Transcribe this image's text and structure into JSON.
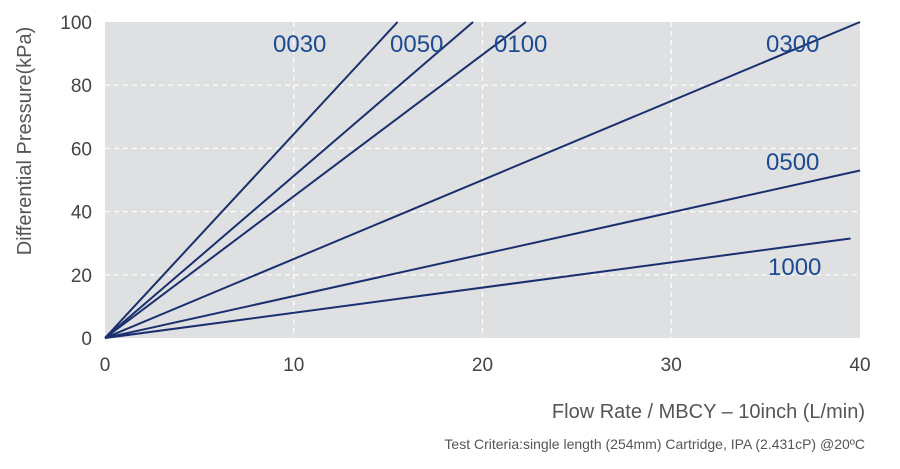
{
  "chart_data": {
    "type": "line",
    "title": "",
    "xlabel": "Flow Rate / MBCY – 10inch (L/min)",
    "ylabel": "Differential Pressure(kPa)",
    "xlim": [
      0,
      40
    ],
    "ylim": [
      0,
      100
    ],
    "xticks": [
      "0",
      "10",
      "20",
      "30",
      "40"
    ],
    "yticks": [
      "0",
      "20",
      "40",
      "60",
      "80",
      "100"
    ],
    "grid": true,
    "note": "Test Criteria:single length (254mm) Cartridge, IPA (2.431cP)  @20ºC",
    "colors": {
      "plot_bg": "#dfe0e2",
      "line": "#1a2f6e",
      "label": "#1b4b93",
      "grid": "#ffffff"
    },
    "series": [
      {
        "name": "0030",
        "x": [
          0,
          15.5
        ],
        "y": [
          0,
          100
        ]
      },
      {
        "name": "0050",
        "x": [
          0,
          19.5
        ],
        "y": [
          0,
          100
        ]
      },
      {
        "name": "0100",
        "x": [
          0,
          22.3
        ],
        "y": [
          0,
          100
        ]
      },
      {
        "name": "0300",
        "x": [
          0,
          40
        ],
        "y": [
          0,
          100
        ]
      },
      {
        "name": "0500",
        "x": [
          0,
          40
        ],
        "y": [
          0,
          53
        ]
      },
      {
        "name": "1000",
        "x": [
          0,
          39.5
        ],
        "y": [
          0,
          31.5
        ]
      }
    ]
  }
}
